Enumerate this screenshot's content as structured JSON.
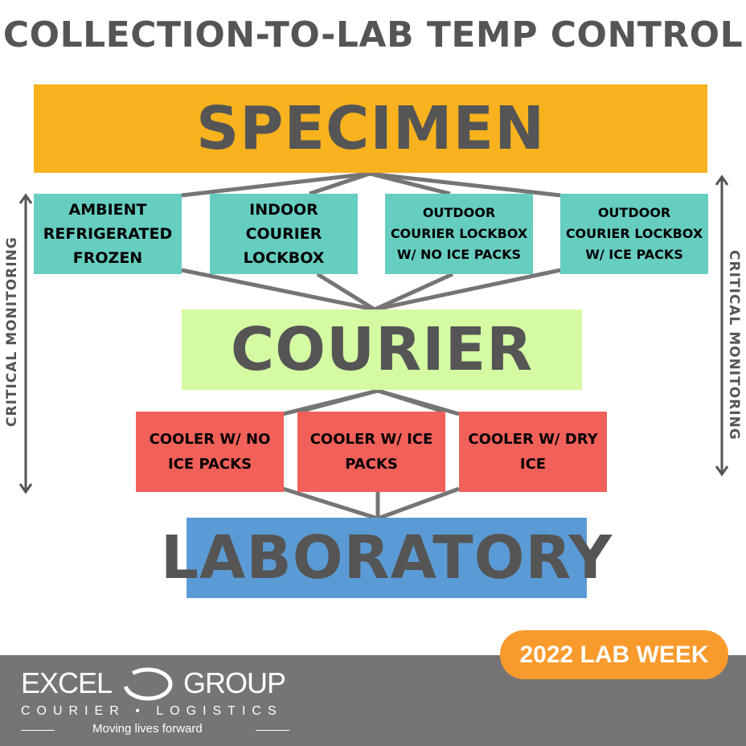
{
  "title": "COLLECTION-TO-LAB TEMP CONTROL",
  "nodes": {
    "specimen": "SPECIMEN",
    "courier": "COURIER",
    "laboratory": "LABORATORY",
    "storage": [
      {
        "lines": [
          "AMBIENT",
          "REFRIGERATED",
          "FROZEN"
        ]
      },
      {
        "lines": [
          "INDOOR",
          "COURIER",
          "LOCKBOX"
        ]
      },
      {
        "lines": [
          "OUTDOOR",
          "COURIER LOCKBOX",
          "W/ NO ICE PACKS"
        ]
      },
      {
        "lines": [
          "OUTDOOR",
          "COURIER LOCKBOX",
          "W/ ICE PACKS"
        ]
      }
    ],
    "coolers": [
      {
        "lines": [
          "COOLER W/ NO",
          "ICE PACKS"
        ]
      },
      {
        "lines": [
          "COOLER W/ ICE",
          "PACKS"
        ]
      },
      {
        "lines": [
          "COOLER W/ DRY",
          "ICE"
        ]
      }
    ]
  },
  "side_label_left": "CRITICAL MONITORING",
  "side_label_right": "CRITICAL MONITORING",
  "badge": "2022 LAB WEEK",
  "logo": {
    "name_left": "EXCEL",
    "name_right": "GROUP",
    "subtitle": "COURIER • LOGISTICS",
    "tagline": "Moving lives forward"
  },
  "colors": {
    "specimen": "#F7B21E",
    "storage": "#66CDC1",
    "courier": "#D4FBA2",
    "coolers": "#F2605A",
    "laboratory": "#5B9BD5",
    "connector": "#757575",
    "footer": "#757575",
    "badge": "#F99A2C"
  }
}
